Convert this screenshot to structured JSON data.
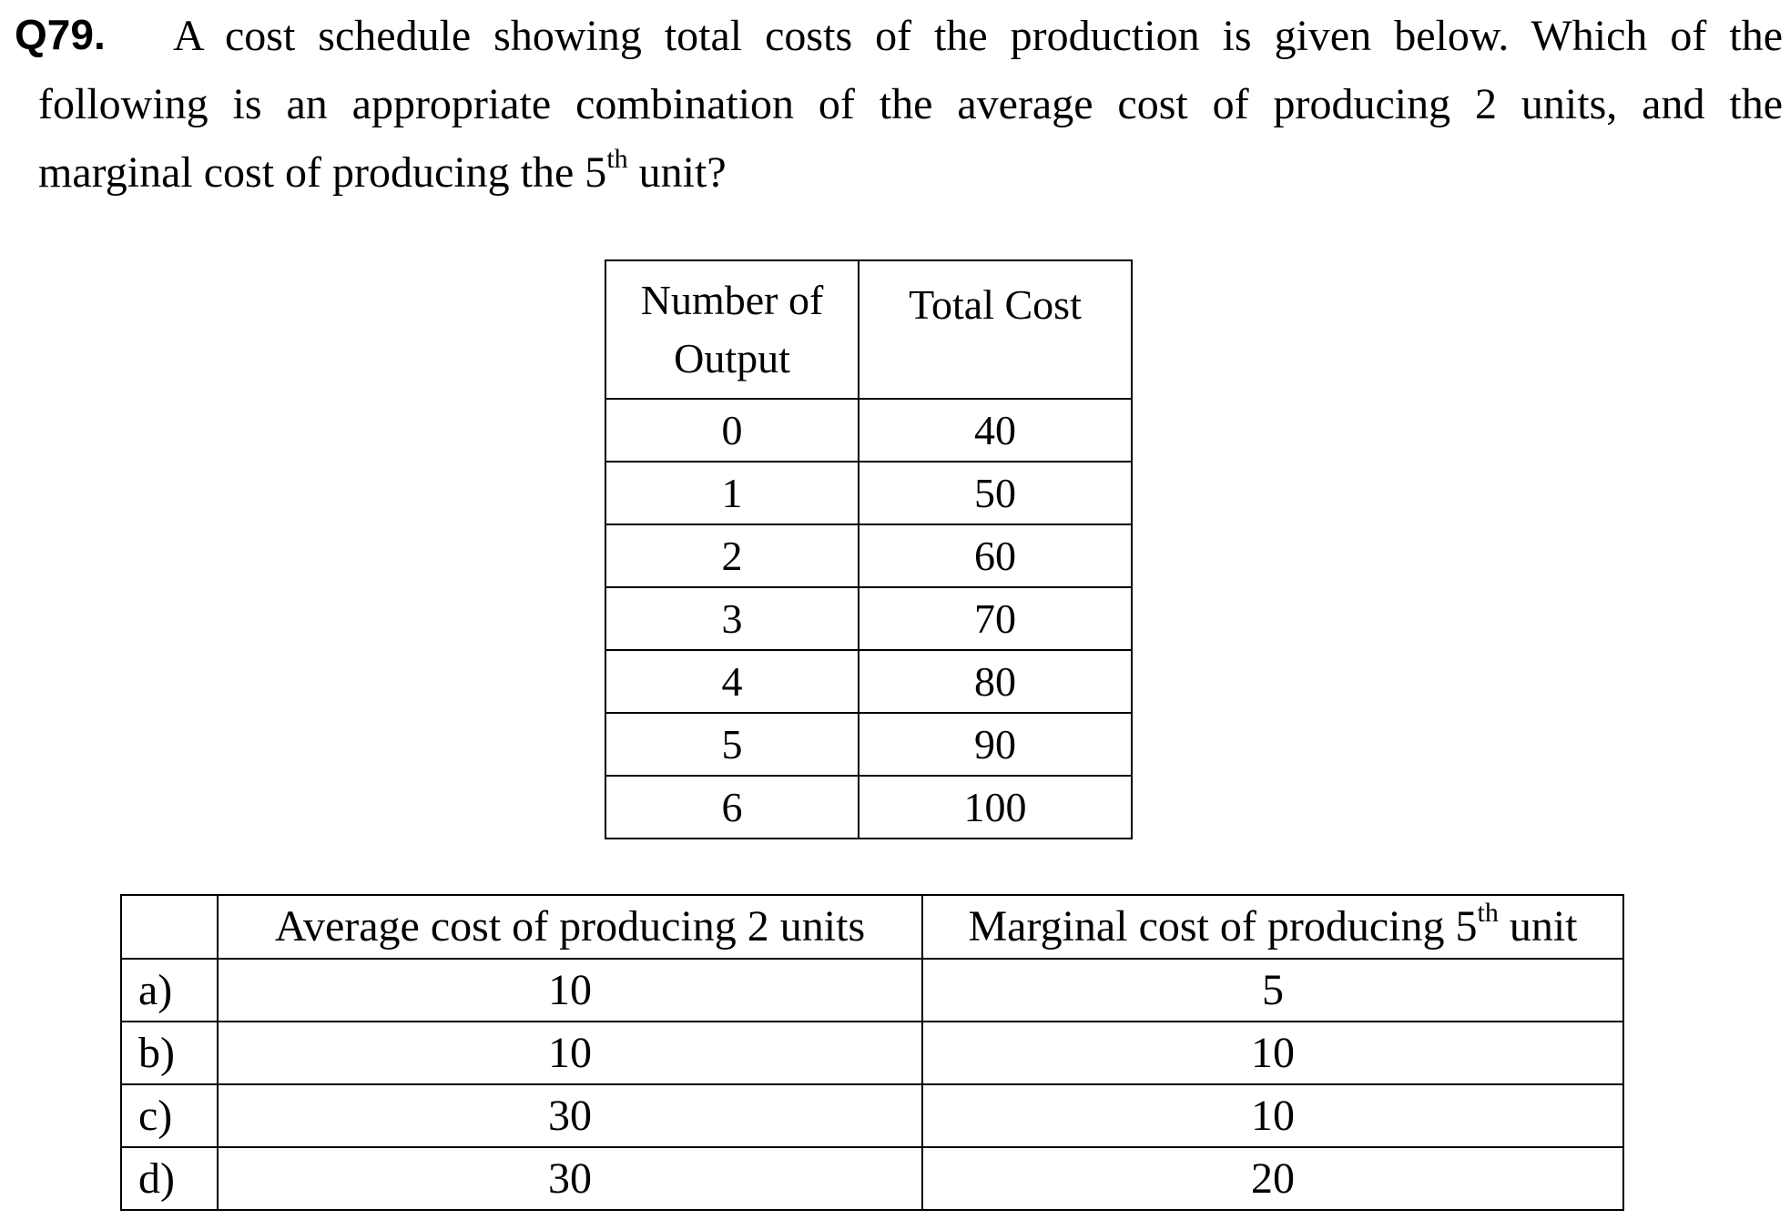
{
  "question": {
    "number": "Q79.",
    "lines": [
      "A cost schedule showing total costs of the production is given below. Which of the",
      "following is an appropriate combination of the average cost of producing 2 units, and the",
      "marginal cost of producing the 5",
      "th",
      " unit?"
    ]
  },
  "schedule": {
    "headers": [
      "Number of Output",
      "Total Cost"
    ],
    "rows": [
      {
        "output": "0",
        "cost": "40"
      },
      {
        "output": "1",
        "cost": "50"
      },
      {
        "output": "2",
        "cost": "60"
      },
      {
        "output": "3",
        "cost": "70"
      },
      {
        "output": "4",
        "cost": "80"
      },
      {
        "output": "5",
        "cost": "90"
      },
      {
        "output": "6",
        "cost": "100"
      }
    ]
  },
  "options": {
    "headers": {
      "average": "Average cost of producing 2 units",
      "marginal_prefix": "Marginal cost of producing 5",
      "marginal_sup": "th",
      "marginal_suffix": " unit"
    },
    "rows": [
      {
        "label": "a)",
        "average": "10",
        "marginal": "5"
      },
      {
        "label": "b)",
        "average": "10",
        "marginal": "10"
      },
      {
        "label": "c)",
        "average": "30",
        "marginal": "10"
      },
      {
        "label": "d)",
        "average": "30",
        "marginal": "20"
      }
    ]
  }
}
